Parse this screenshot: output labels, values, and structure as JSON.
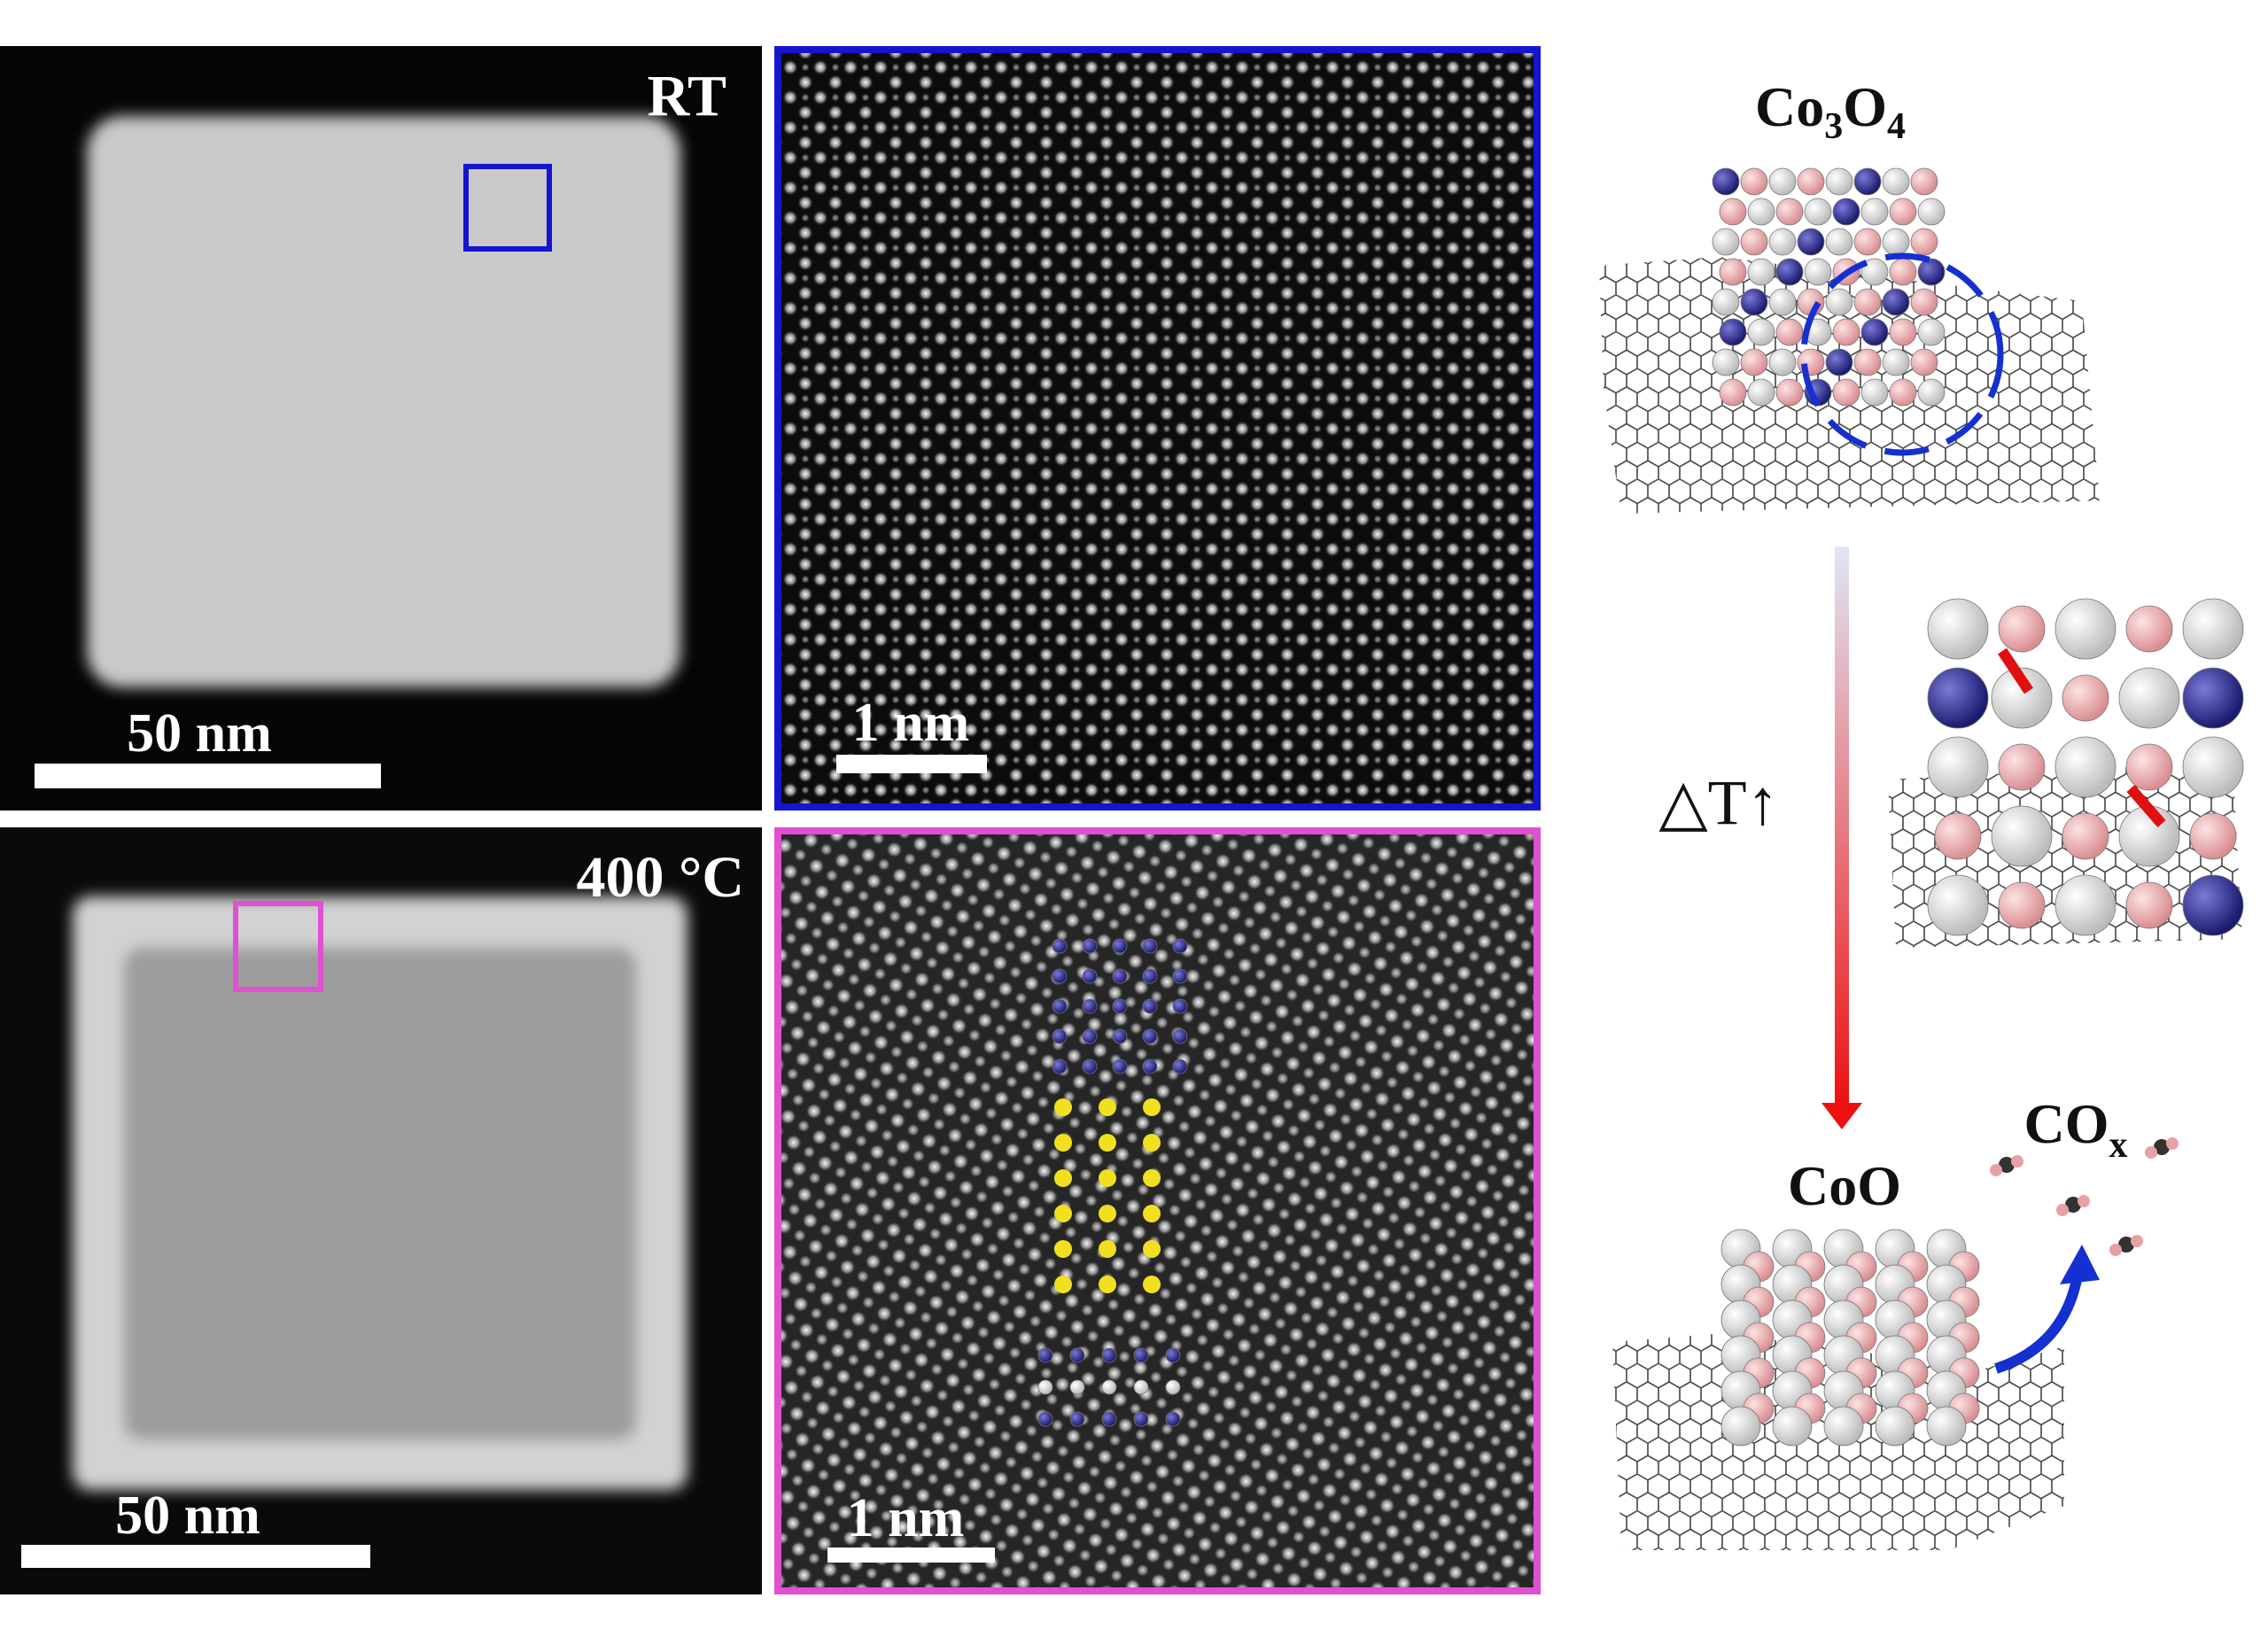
{
  "panels": {
    "rt": {
      "label": "RT",
      "scale_bar": "50 nm"
    },
    "rt_zoom": {
      "scale_bar": "1 nm"
    },
    "heated": {
      "label": "400 °C",
      "scale_bar": "50 nm"
    },
    "heated_zoom": {
      "scale_bar": "1 nm"
    }
  },
  "schematic": {
    "initial_phase": [
      "Co",
      "3",
      "O",
      "4"
    ],
    "heating": "△T↑",
    "final_phase": "CoO",
    "product": [
      "CO",
      "x"
    ]
  }
}
